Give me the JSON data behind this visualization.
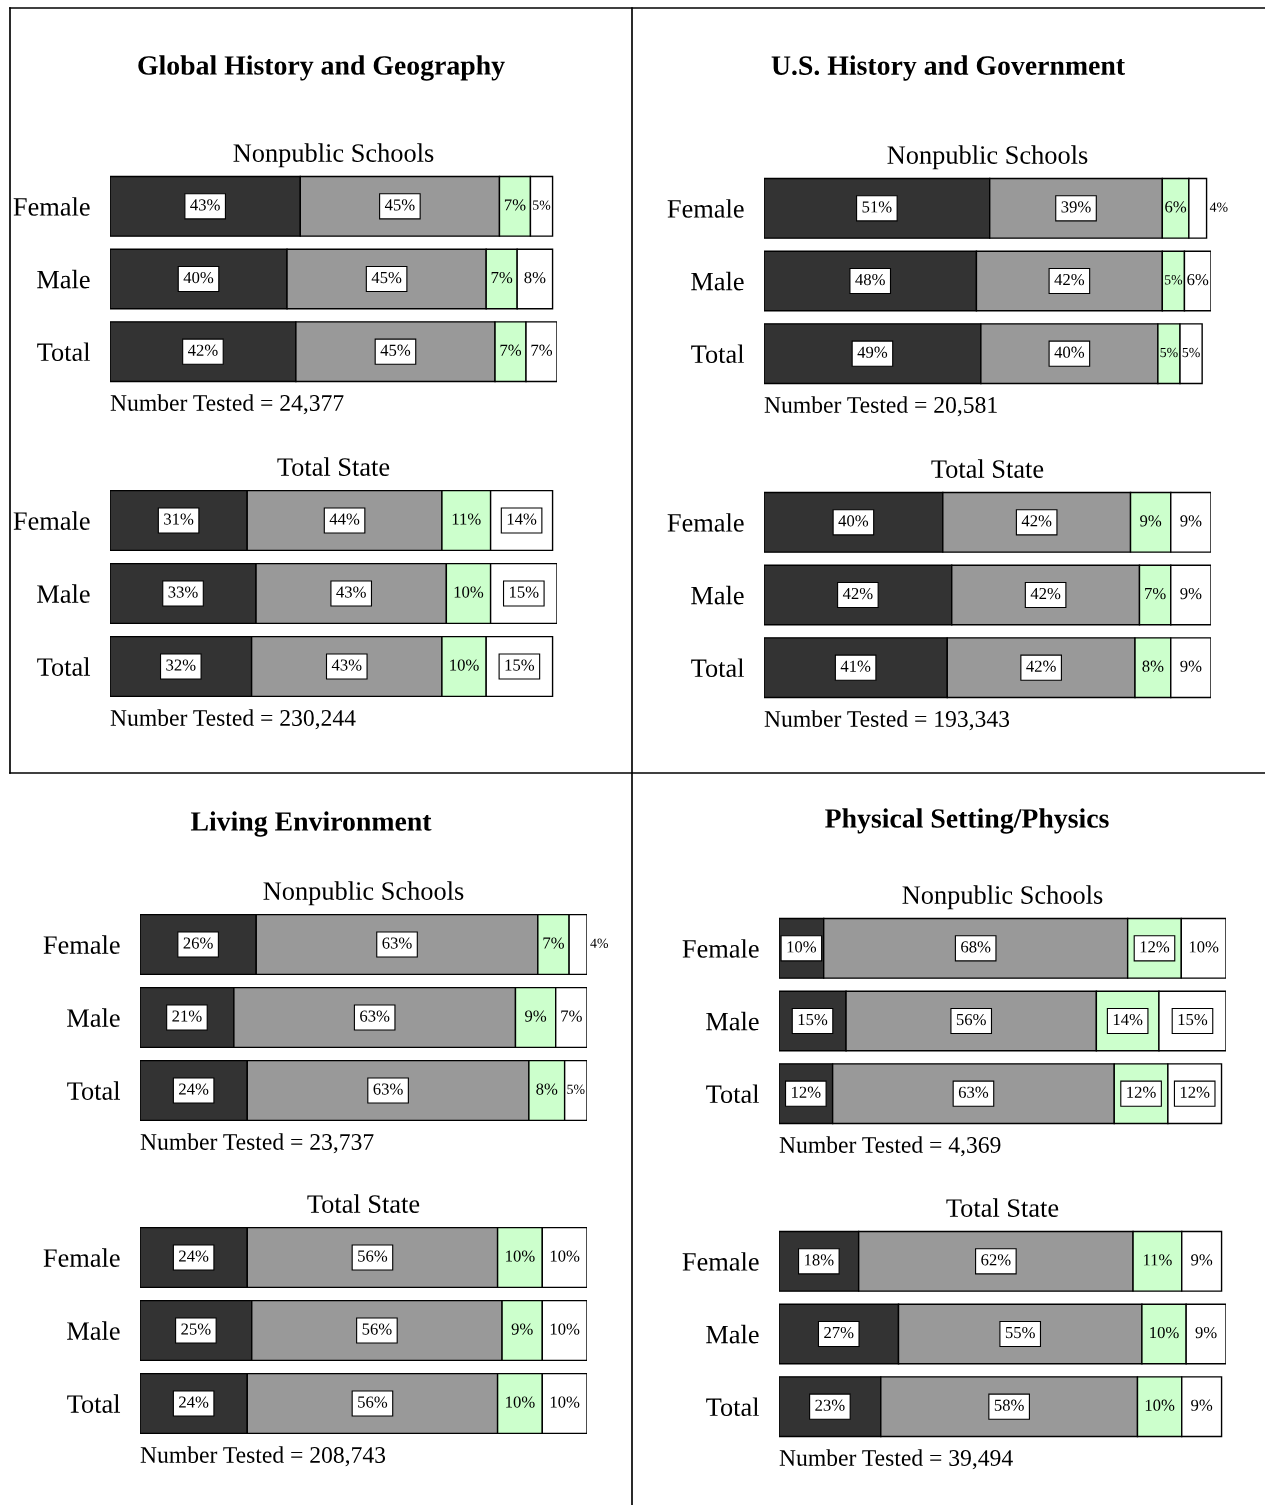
{
  "chart_data": [
    {
      "type": "bar",
      "orientation": "horizontal",
      "stacked": true,
      "tick_labels": "y",
      "title": "Global History and Geography",
      "subtitle": "Nonpublic Schools",
      "categories": [
        "Female",
        "Male",
        "Total"
      ],
      "annotations": [
        "Number Tested = 24,377"
      ],
      "series": [
        {
          "color": "#333333",
          "values": [
            43,
            40,
            42
          ],
          "value_labels": [
            "43%",
            "40%",
            "42%"
          ]
        },
        {
          "color": "#999999",
          "values": [
            45,
            45,
            45
          ],
          "value_labels": [
            "45%",
            "45%",
            "45%"
          ]
        },
        {
          "color": "#ccffcc",
          "values": [
            7,
            7,
            7
          ],
          "value_labels": [
            "7%",
            "7%",
            "7%"
          ]
        },
        {
          "color": "#ffffff",
          "values": [
            5,
            8,
            7
          ],
          "value_labels": [
            "5%",
            "8%",
            "7%"
          ]
        }
      ]
    },
    {
      "type": "bar",
      "orientation": "horizontal",
      "stacked": true,
      "tick_labels": "y",
      "subtitle": "Total State",
      "categories": [
        "Female",
        "Male",
        "Total"
      ],
      "annotations": [
        "Number Tested = 230,244"
      ],
      "series": [
        {
          "color": "#333333",
          "values": [
            31,
            33,
            32
          ],
          "value_labels": [
            "31%",
            "33%",
            "32%"
          ]
        },
        {
          "color": "#999999",
          "values": [
            44,
            43,
            43
          ],
          "value_labels": [
            "44%",
            "43%",
            "43%"
          ]
        },
        {
          "color": "#ccffcc",
          "values": [
            11,
            10,
            10
          ],
          "value_labels": [
            "11%",
            "10%",
            "10%"
          ]
        },
        {
          "color": "#ffffff",
          "values": [
            14,
            15,
            15
          ],
          "value_labels": [
            "14%",
            "15%",
            "15%"
          ]
        }
      ]
    },
    {
      "type": "bar",
      "orientation": "horizontal",
      "stacked": true,
      "tick_labels": "y",
      "title": "U.S. History and Government",
      "subtitle": "Nonpublic Schools",
      "categories": [
        "Female",
        "Male",
        "Total"
      ],
      "annotations": [
        "Number Tested = 20,581"
      ],
      "series": [
        {
          "color": "#333333",
          "values": [
            51,
            48,
            49
          ],
          "value_labels": [
            "51%",
            "48%",
            "49%"
          ]
        },
        {
          "color": "#999999",
          "values": [
            39,
            42,
            40
          ],
          "value_labels": [
            "39%",
            "42%",
            "40%"
          ]
        },
        {
          "color": "#ccffcc",
          "values": [
            6,
            5,
            5
          ],
          "value_labels": [
            "6%",
            "5%",
            "5%"
          ]
        },
        {
          "color": "#ffffff",
          "values": [
            4,
            6,
            5
          ],
          "value_labels": [
            "4%",
            "6%",
            "5%"
          ]
        }
      ]
    },
    {
      "type": "bar",
      "orientation": "horizontal",
      "stacked": true,
      "tick_labels": "y",
      "subtitle": "Total State",
      "categories": [
        "Female",
        "Male",
        "Total"
      ],
      "annotations": [
        "Number Tested = 193,343"
      ],
      "series": [
        {
          "color": "#333333",
          "values": [
            40,
            42,
            41
          ],
          "value_labels": [
            "40%",
            "42%",
            "41%"
          ]
        },
        {
          "color": "#999999",
          "values": [
            42,
            42,
            42
          ],
          "value_labels": [
            "42%",
            "42%",
            "42%"
          ]
        },
        {
          "color": "#ccffcc",
          "values": [
            9,
            7,
            8
          ],
          "value_labels": [
            "9%",
            "7%",
            "8%"
          ]
        },
        {
          "color": "#ffffff",
          "values": [
            9,
            9,
            9
          ],
          "value_labels": [
            "9%",
            "9%",
            "9%"
          ]
        }
      ]
    },
    {
      "type": "bar",
      "orientation": "horizontal",
      "stacked": true,
      "tick_labels": "y",
      "title": "Living Environment",
      "subtitle": "Nonpublic Schools",
      "categories": [
        "Female",
        "Male",
        "Total"
      ],
      "annotations": [
        "Number Tested = 23,737"
      ],
      "series": [
        {
          "color": "#333333",
          "values": [
            26,
            21,
            24
          ],
          "value_labels": [
            "26%",
            "21%",
            "24%"
          ]
        },
        {
          "color": "#999999",
          "values": [
            63,
            63,
            63
          ],
          "value_labels": [
            "63%",
            "63%",
            "63%"
          ]
        },
        {
          "color": "#ccffcc",
          "values": [
            7,
            9,
            8
          ],
          "value_labels": [
            "7%",
            "9%",
            "8%"
          ]
        },
        {
          "color": "#ffffff",
          "values": [
            4,
            7,
            5
          ],
          "value_labels": [
            "4%",
            "7%",
            "5%"
          ]
        }
      ]
    },
    {
      "type": "bar",
      "orientation": "horizontal",
      "stacked": true,
      "tick_labels": "y",
      "subtitle": "Total State",
      "categories": [
        "Female",
        "Male",
        "Total"
      ],
      "annotations": [
        "Number Tested = 208,743"
      ],
      "series": [
        {
          "color": "#333333",
          "values": [
            24,
            25,
            24
          ],
          "value_labels": [
            "24%",
            "25%",
            "24%"
          ]
        },
        {
          "color": "#999999",
          "values": [
            56,
            56,
            56
          ],
          "value_labels": [
            "56%",
            "56%",
            "56%"
          ]
        },
        {
          "color": "#ccffcc",
          "values": [
            10,
            9,
            10
          ],
          "value_labels": [
            "10%",
            "9%",
            "10%"
          ]
        },
        {
          "color": "#ffffff",
          "values": [
            10,
            10,
            10
          ],
          "value_labels": [
            "10%",
            "10%",
            "10%"
          ]
        }
      ]
    },
    {
      "type": "bar",
      "orientation": "horizontal",
      "stacked": true,
      "tick_labels": "y",
      "title": "Physical Setting/Physics",
      "subtitle": "Nonpublic Schools",
      "categories": [
        "Female",
        "Male",
        "Total"
      ],
      "annotations": [
        "Number Tested = 4,369"
      ],
      "series": [
        {
          "color": "#333333",
          "values": [
            10,
            15,
            12
          ],
          "value_labels": [
            "10%",
            "15%",
            "12%"
          ]
        },
        {
          "color": "#999999",
          "values": [
            68,
            56,
            63
          ],
          "value_labels": [
            "68%",
            "56%",
            "63%"
          ]
        },
        {
          "color": "#ccffcc",
          "values": [
            12,
            14,
            12
          ],
          "value_labels": [
            "12%",
            "14%",
            "12%"
          ]
        },
        {
          "color": "#ffffff",
          "values": [
            10,
            15,
            12
          ],
          "value_labels": [
            "10%",
            "15%",
            "12%"
          ]
        }
      ]
    },
    {
      "type": "bar",
      "orientation": "horizontal",
      "stacked": true,
      "tick_labels": "y",
      "subtitle": "Total State",
      "categories": [
        "Female",
        "Male",
        "Total"
      ],
      "annotations": [
        "Number Tested = 39,494"
      ],
      "series": [
        {
          "color": "#333333",
          "values": [
            18,
            27,
            23
          ],
          "value_labels": [
            "18%",
            "27%",
            "23%"
          ]
        },
        {
          "color": "#999999",
          "values": [
            62,
            55,
            58
          ],
          "value_labels": [
            "62%",
            "55%",
            "58%"
          ]
        },
        {
          "color": "#ccffcc",
          "values": [
            11,
            10,
            10
          ],
          "value_labels": [
            "11%",
            "10%",
            "10%"
          ]
        },
        {
          "color": "#ffffff",
          "values": [
            9,
            9,
            9
          ],
          "value_labels": [
            "9%",
            "9%",
            "9%"
          ]
        }
      ]
    }
  ]
}
